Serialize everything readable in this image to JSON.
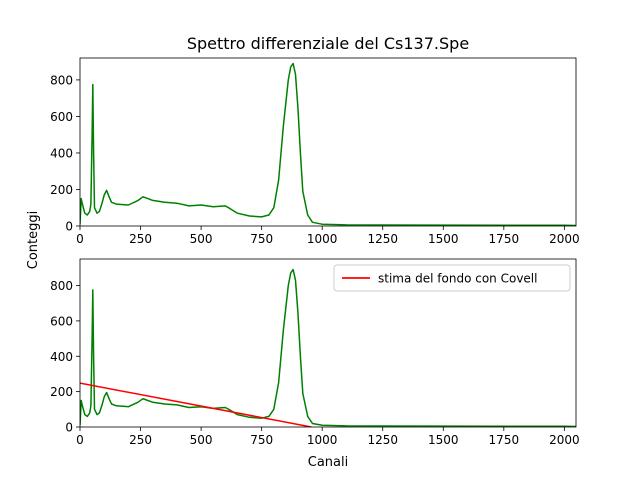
{
  "figure": {
    "title": "Spettro differenziale del Cs137.Spe",
    "shared_ylabel": "Conteggi",
    "shared_xlabel": "Canali"
  },
  "chart_data": [
    {
      "type": "line",
      "title": "Spettro differenziale del Cs137.Spe",
      "ylabel": "Conteggi",
      "xlabel": "",
      "xlim": [
        0,
        2048
      ],
      "ylim": [
        0,
        920
      ],
      "x_ticks": [
        0,
        250,
        500,
        750,
        1000,
        1250,
        1500,
        1750,
        2000
      ],
      "y_ticks": [
        0,
        200,
        400,
        600,
        800
      ],
      "grid": false,
      "series": [
        {
          "name": "",
          "color": "#008000",
          "x": [
            0,
            5,
            10,
            20,
            30,
            40,
            45,
            50,
            53,
            56,
            60,
            70,
            80,
            90,
            100,
            110,
            120,
            130,
            150,
            200,
            240,
            260,
            280,
            300,
            350,
            400,
            450,
            500,
            550,
            600,
            620,
            650,
            700,
            750,
            780,
            800,
            820,
            840,
            860,
            870,
            880,
            890,
            900,
            910,
            920,
            940,
            960,
            1000,
            1100,
            1500,
            2000,
            2048
          ],
          "y": [
            10,
            150,
            120,
            70,
            60,
            80,
            120,
            500,
            775,
            400,
            100,
            70,
            80,
            120,
            170,
            195,
            160,
            130,
            120,
            115,
            140,
            160,
            150,
            140,
            130,
            125,
            110,
            115,
            105,
            110,
            95,
            70,
            55,
            50,
            60,
            100,
            250,
            550,
            800,
            870,
            890,
            830,
            640,
            400,
            190,
            60,
            20,
            10,
            6,
            5,
            4,
            3
          ]
        }
      ]
    },
    {
      "type": "line",
      "title": "",
      "ylabel": "",
      "xlabel": "Canali",
      "xlim": [
        0,
        2048
      ],
      "ylim": [
        0,
        950
      ],
      "x_ticks": [
        0,
        250,
        500,
        750,
        1000,
        1250,
        1500,
        1750,
        2000
      ],
      "y_ticks": [
        0,
        200,
        400,
        600,
        800
      ],
      "grid": false,
      "legend": "top-right",
      "series": [
        {
          "name": "",
          "color": "#008000",
          "x": [
            0,
            5,
            10,
            20,
            30,
            40,
            45,
            50,
            53,
            56,
            60,
            70,
            80,
            90,
            100,
            110,
            120,
            130,
            150,
            200,
            240,
            260,
            280,
            300,
            350,
            400,
            450,
            500,
            550,
            600,
            620,
            650,
            700,
            750,
            780,
            800,
            820,
            840,
            860,
            870,
            880,
            890,
            900,
            910,
            920,
            940,
            960,
            1000,
            1100,
            1500,
            2000,
            2048
          ],
          "y": [
            10,
            150,
            120,
            70,
            60,
            80,
            120,
            500,
            775,
            400,
            100,
            70,
            80,
            120,
            170,
            195,
            160,
            130,
            120,
            115,
            140,
            160,
            150,
            140,
            130,
            125,
            110,
            115,
            105,
            110,
            95,
            70,
            55,
            50,
            60,
            100,
            250,
            550,
            800,
            870,
            890,
            830,
            640,
            400,
            190,
            60,
            20,
            10,
            6,
            5,
            4,
            3
          ]
        },
        {
          "name": "stima del fondo con Covell",
          "color": "#ff0000",
          "x": [
            0,
            955
          ],
          "y": [
            248,
            0
          ]
        }
      ]
    }
  ]
}
